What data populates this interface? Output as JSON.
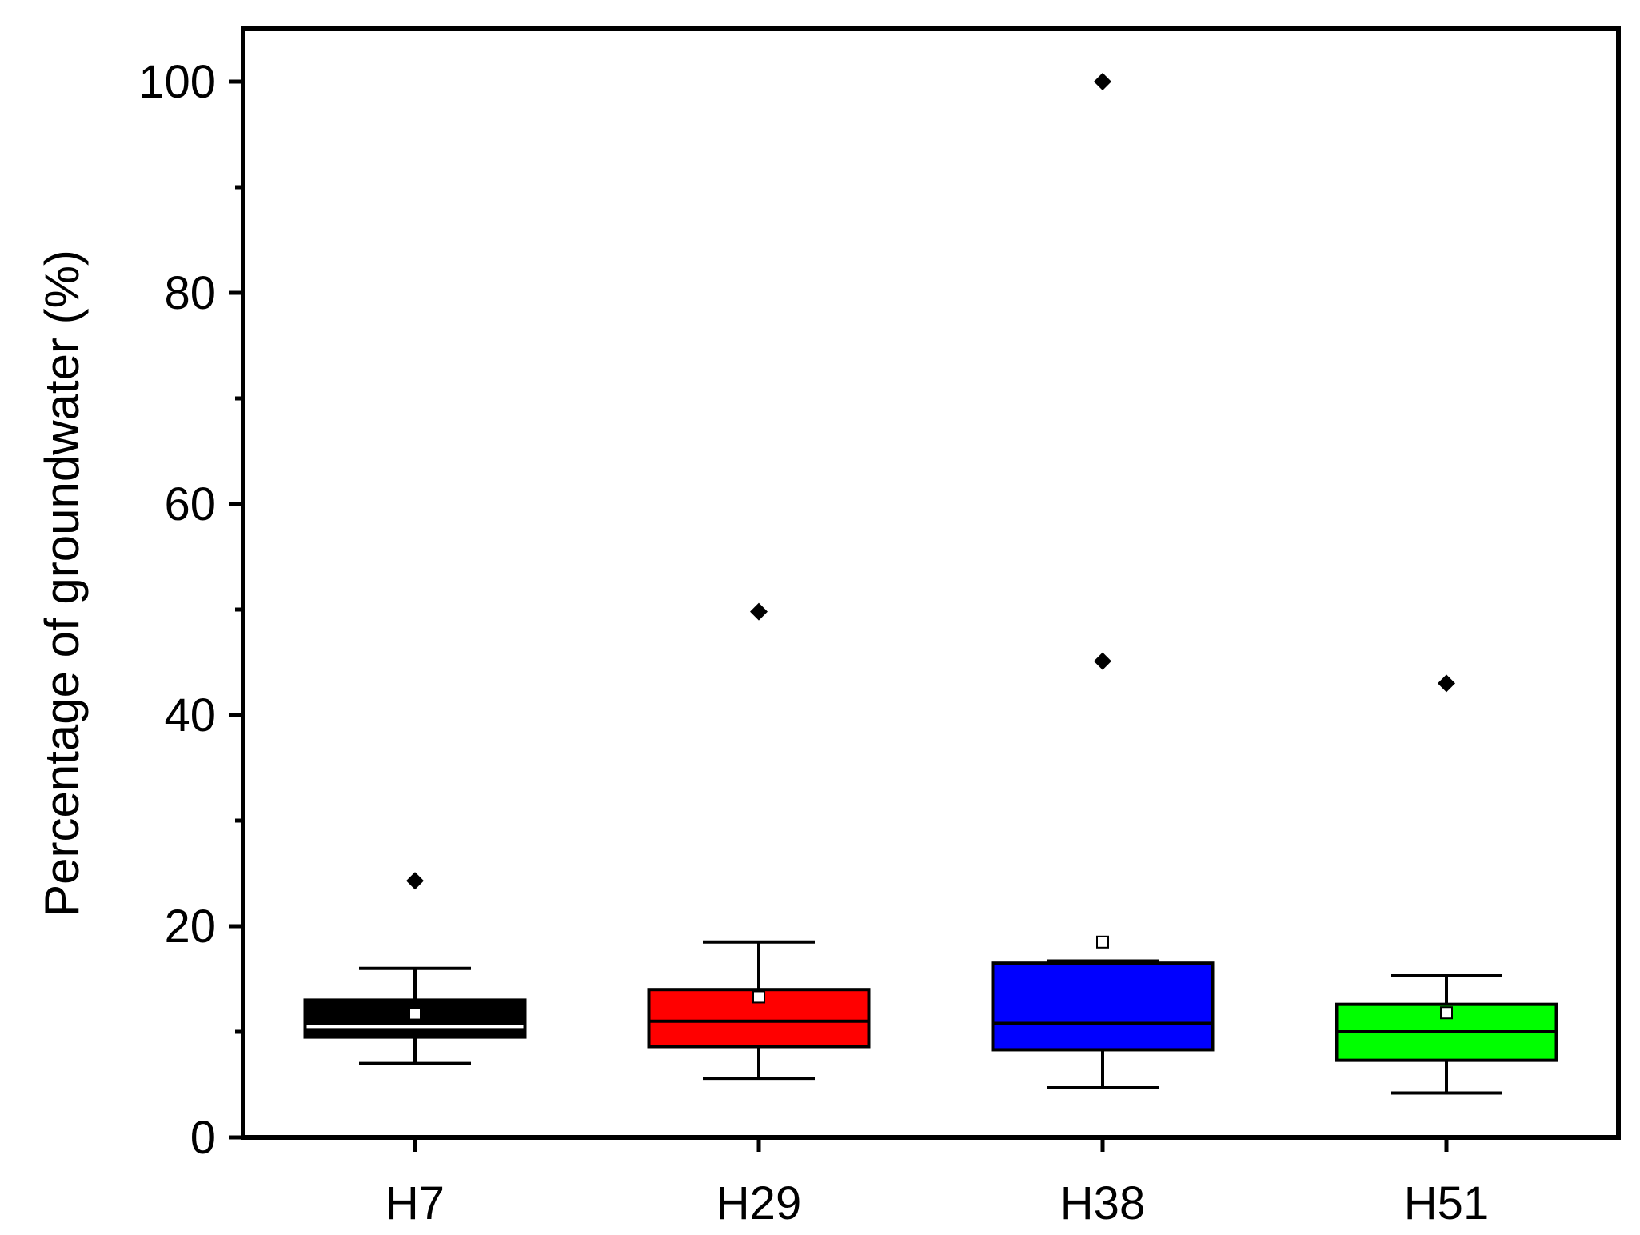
{
  "chart_data": {
    "type": "box",
    "title": "",
    "xlabel": "",
    "ylabel": "Percentage of groundwater (%)",
    "ylim": [
      0,
      105
    ],
    "y_ticks": [
      "0",
      "20",
      "40",
      "60",
      "80",
      "100"
    ],
    "y_tick_values": [
      0,
      20,
      40,
      60,
      80,
      100
    ],
    "y_minor_ticks": [
      10,
      30,
      50,
      70,
      90
    ],
    "grid": false,
    "legend": "none",
    "categories": [
      "H7",
      "H29",
      "H38",
      "H51"
    ],
    "series": [
      {
        "category": "H7",
        "color": "#000000",
        "median_color": "#ffffff",
        "whisker_low": 7.0,
        "q1": 9.5,
        "median": 10.5,
        "q3": 13.0,
        "whisker_high": 16.0,
        "mean": 11.7,
        "outliers": [
          24.3
        ]
      },
      {
        "category": "H29",
        "color": "#ff0000",
        "median_color": "#000000",
        "whisker_low": 5.6,
        "q1": 8.6,
        "median": 11.0,
        "q3": 14.0,
        "whisker_high": 18.5,
        "mean": 13.3,
        "outliers": [
          49.8
        ]
      },
      {
        "category": "H38",
        "color": "#0000ff",
        "median_color": "#000000",
        "whisker_low": 4.7,
        "q1": 8.3,
        "median": 10.8,
        "q3": 16.5,
        "whisker_high": 16.7,
        "mean": 18.5,
        "outliers": [
          45.1,
          100.0
        ]
      },
      {
        "category": "H51",
        "color": "#00ff00",
        "median_color": "#000000",
        "whisker_low": 4.2,
        "q1": 7.3,
        "median": 10.0,
        "q3": 12.6,
        "whisker_high": 15.3,
        "mean": 11.8,
        "outliers": [
          43.0
        ]
      }
    ]
  }
}
